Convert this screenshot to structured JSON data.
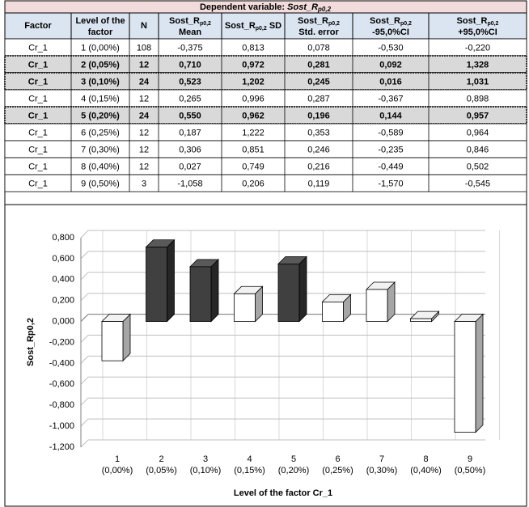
{
  "table": {
    "title": {
      "prefix": "Dependent variable: ",
      "text": "Sost_R",
      "sub": "p0,2"
    },
    "header": [
      {
        "text": "Factor"
      },
      {
        "text": "Level of the",
        "suffix": "factor"
      },
      {
        "text": "N"
      },
      {
        "text": "Sost_R",
        "sub": "p0,2",
        "suffix": "Mean"
      },
      {
        "text": "Sost_R",
        "sub": "p0,2",
        "after": " SD"
      },
      {
        "text": "Sost_R",
        "sub": "p0,2",
        "suffix": "Std. error"
      },
      {
        "text": "Sost_R",
        "sub": "p0,2",
        "suffix": "-95,0%CI"
      },
      {
        "text": "Sost_R",
        "sub": "p0,2",
        "suffix": "+95,0%CI"
      }
    ],
    "rows": [
      [
        "Cr_1",
        "1 (0,00%)",
        "108",
        "-0,375",
        "0,813",
        "0,078",
        "-0,530",
        "-0,220"
      ],
      [
        "Cr_1",
        "2 (0,05%)",
        "12",
        "0,710",
        "0,972",
        "0,281",
        "0,092",
        "1,328"
      ],
      [
        "Cr_1",
        "3 (0,10%)",
        "24",
        "0,523",
        "1,202",
        "0,245",
        "0,016",
        "1,031"
      ],
      [
        "Cr_1",
        "4 (0,15%)",
        "12",
        "0,265",
        "0,996",
        "0,287",
        "-0,367",
        "0,898"
      ],
      [
        "Cr_1",
        "5 (0,20%)",
        "24",
        "0,550",
        "0,962",
        "0,196",
        "0,144",
        "0,957"
      ],
      [
        "Cr_1",
        "6 (0,25%)",
        "12",
        "0,187",
        "1,222",
        "0,353",
        "-0,589",
        "0,964"
      ],
      [
        "Cr_1",
        "7 (0,30%)",
        "12",
        "0,306",
        "0,851",
        "0,246",
        "-0,235",
        "0,846"
      ],
      [
        "Cr_1",
        "8 (0,40%)",
        "12",
        "0,027",
        "0,749",
        "0,216",
        "-0,449",
        "0,502"
      ],
      [
        "Cr_1",
        "9 (0,50%)",
        "3",
        "-1,058",
        "0,206",
        "0,119",
        "-1,570",
        "-0,545"
      ]
    ],
    "highlighted_rows": [
      1,
      2,
      4
    ]
  },
  "chart_data": {
    "type": "bar3d",
    "categories": [
      "1 (0,00%)",
      "2 (0,05%)",
      "3 (0,10%)",
      "4 (0,15%)",
      "5 (0,20%)",
      "6 (0,25%)",
      "7 (0,30%)",
      "8 (0,40%)",
      "9 (0,50%)"
    ],
    "values": [
      -0.375,
      0.71,
      0.523,
      0.265,
      0.55,
      0.187,
      0.306,
      0.027,
      -1.058
    ],
    "colors": [
      "#ffffff",
      "#404040",
      "#404040",
      "#ffffff",
      "#404040",
      "#ffffff",
      "#ffffff",
      "#ffffff",
      "#ffffff"
    ],
    "ylabel": "Sost_Rp0,2",
    "xlabel": "Level of the factor Cr_1",
    "ylim": [
      -1.2,
      0.8
    ],
    "yticks": [
      {
        "value": 0.8,
        "label": "0,800"
      },
      {
        "value": 0.6,
        "label": "0,600"
      },
      {
        "value": 0.4,
        "label": "0,400"
      },
      {
        "value": 0.2,
        "label": "0,200"
      },
      {
        "value": 0,
        "label": "0,000"
      },
      {
        "value": -0.2,
        "label": "-0,200"
      },
      {
        "value": -0.4,
        "label": "-0,400"
      },
      {
        "value": -0.6,
        "label": "-0,600"
      },
      {
        "value": -0.8,
        "label": "-0,800"
      },
      {
        "value": -1,
        "label": "-1,000"
      },
      {
        "value": -1.2,
        "label": "-1,200"
      }
    ],
    "grid": true
  }
}
